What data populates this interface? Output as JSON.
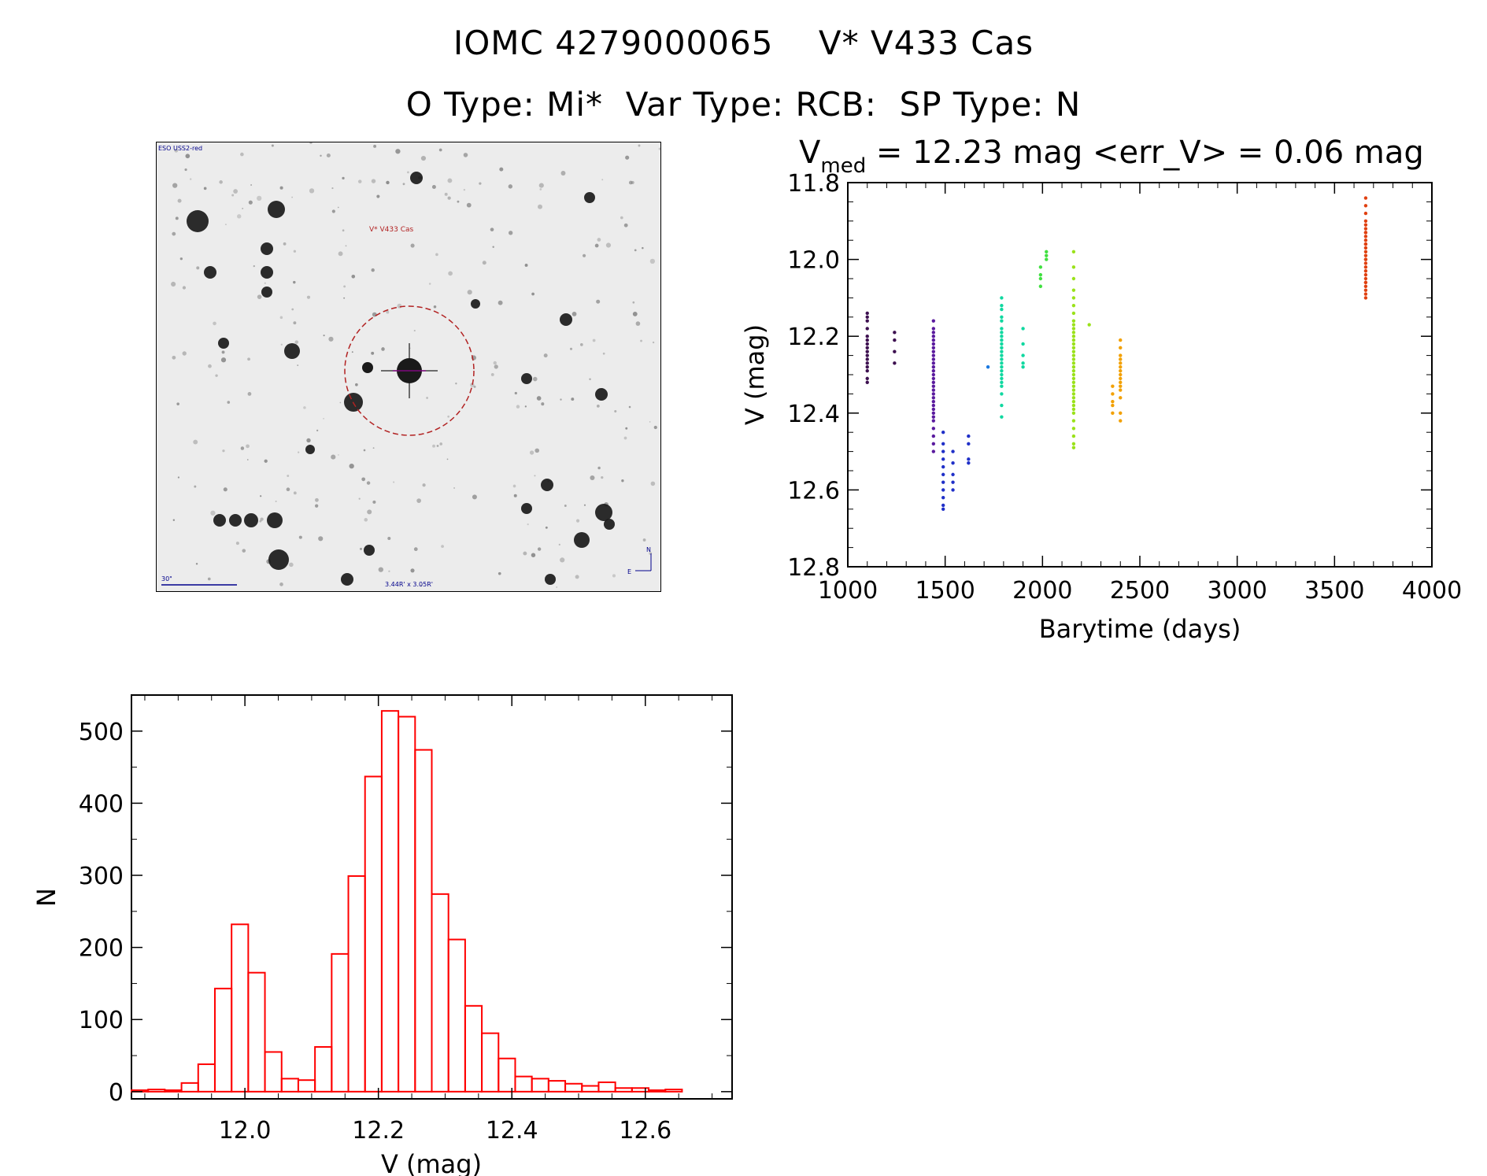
{
  "header": {
    "title_line1": "IOMC 4279000065    V* V433 Cas",
    "title_line2": "O Type: Mi*  Var Type: RCB:  SP Type: N"
  },
  "finder": {
    "survey_label": "ESO USS2-red",
    "target_label": "V* V433 Cas",
    "scale_label": "30\"",
    "fov_label": "3.44R' x 3.05R'",
    "north_label": "N",
    "east_label": "E",
    "colors": {
      "ink": "#1a1a1a",
      "circle": "#b22222",
      "label": "#00008b",
      "target_label": "#b22222"
    }
  },
  "light_curve": {
    "title_prefix": "V",
    "title_sub": "med",
    "title_rest": " = 12.23 mag <err_V> = 0.06 mag",
    "chart_data": {
      "type": "scatter",
      "xlabel": "Barytime (days)",
      "ylabel": "V (mag)",
      "xlim": [
        1000,
        4000
      ],
      "ylim": [
        12.8,
        11.8
      ],
      "y_inverted": true,
      "x_ticks": [
        "1000",
        "1500",
        "2000",
        "2500",
        "3000",
        "3500",
        "4000"
      ],
      "y_ticks": [
        "11.8",
        "12.0",
        "12.2",
        "12.4",
        "12.6",
        "12.8"
      ],
      "series": [
        {
          "color": "#3d1050",
          "x": [
            1100,
            1100,
            1100,
            1100,
            1100,
            1100,
            1100,
            1100,
            1100,
            1100,
            1100,
            1100,
            1100,
            1100,
            1100,
            1100,
            1240,
            1240,
            1240,
            1240
          ],
          "y": [
            12.14,
            12.15,
            12.16,
            12.18,
            12.2,
            12.21,
            12.22,
            12.23,
            12.24,
            12.25,
            12.26,
            12.27,
            12.28,
            12.29,
            12.31,
            12.32,
            12.19,
            12.21,
            12.24,
            12.27
          ]
        },
        {
          "color": "#5a1a9e",
          "x": [
            1440,
            1440,
            1440,
            1440,
            1440,
            1440,
            1440,
            1440,
            1440,
            1440,
            1440,
            1440,
            1440,
            1440,
            1440,
            1440,
            1440,
            1440,
            1440,
            1440,
            1440,
            1440,
            1440,
            1440,
            1440,
            1440,
            1440,
            1440,
            1440,
            1440
          ],
          "y": [
            12.16,
            12.18,
            12.19,
            12.2,
            12.21,
            12.22,
            12.23,
            12.24,
            12.25,
            12.26,
            12.27,
            12.28,
            12.29,
            12.3,
            12.31,
            12.32,
            12.33,
            12.34,
            12.35,
            12.36,
            12.37,
            12.38,
            12.39,
            12.4,
            12.41,
            12.42,
            12.44,
            12.46,
            12.48,
            12.5
          ]
        },
        {
          "color": "#2030c8",
          "x": [
            1490,
            1490,
            1490,
            1490,
            1490,
            1490,
            1490,
            1490,
            1490,
            1490,
            1490,
            1540,
            1540,
            1540,
            1540,
            1540,
            1620,
            1620,
            1620,
            1620
          ],
          "y": [
            12.45,
            12.48,
            12.5,
            12.52,
            12.54,
            12.56,
            12.58,
            12.6,
            12.62,
            12.64,
            12.65,
            12.5,
            12.53,
            12.56,
            12.58,
            12.6,
            12.46,
            12.48,
            12.52,
            12.53
          ]
        },
        {
          "color": "#1a78e0",
          "x": [
            1720
          ],
          "y": [
            12.28
          ]
        },
        {
          "color": "#10d8a0",
          "x": [
            1790,
            1790,
            1790,
            1790,
            1790,
            1790,
            1790,
            1790,
            1790,
            1790,
            1790,
            1790,
            1790,
            1790,
            1790,
            1790,
            1790,
            1790,
            1790,
            1790,
            1790,
            1790,
            1790,
            1790,
            1900,
            1900,
            1900,
            1900,
            1900
          ],
          "y": [
            12.1,
            12.12,
            12.13,
            12.15,
            12.16,
            12.18,
            12.19,
            12.2,
            12.21,
            12.22,
            12.23,
            12.24,
            12.25,
            12.26,
            12.27,
            12.28,
            12.29,
            12.3,
            12.31,
            12.32,
            12.33,
            12.35,
            12.38,
            12.41,
            12.18,
            12.22,
            12.25,
            12.27,
            12.28
          ]
        },
        {
          "color": "#40e040",
          "x": [
            1990,
            1990,
            1990,
            1990,
            2020,
            2020,
            2020
          ],
          "y": [
            12.02,
            12.04,
            12.05,
            12.07,
            11.98,
            11.99,
            12.0
          ]
        },
        {
          "color": "#9ae21a",
          "x": [
            2160,
            2160,
            2160,
            2160,
            2160,
            2160,
            2160,
            2160,
            2160,
            2160,
            2160,
            2160,
            2160,
            2160,
            2160,
            2160,
            2160,
            2160,
            2160,
            2160,
            2160,
            2160,
            2160,
            2160,
            2160,
            2160,
            2160,
            2160,
            2160,
            2160,
            2160,
            2160,
            2160,
            2160,
            2160,
            2160,
            2160,
            2240
          ],
          "y": [
            11.98,
            12.02,
            12.05,
            12.08,
            12.1,
            12.12,
            12.14,
            12.16,
            12.17,
            12.18,
            12.19,
            12.2,
            12.21,
            12.22,
            12.23,
            12.24,
            12.25,
            12.26,
            12.27,
            12.28,
            12.29,
            12.3,
            12.31,
            12.32,
            12.33,
            12.34,
            12.35,
            12.36,
            12.37,
            12.38,
            12.39,
            12.4,
            12.42,
            12.44,
            12.46,
            12.48,
            12.49,
            12.17
          ]
        },
        {
          "color": "#f2a000",
          "x": [
            2360,
            2360,
            2360,
            2360,
            2360,
            2400,
            2400,
            2400,
            2400,
            2400,
            2400,
            2400,
            2400,
            2400,
            2400,
            2400,
            2400,
            2400,
            2400,
            2400
          ],
          "y": [
            12.33,
            12.35,
            12.37,
            12.38,
            12.4,
            12.21,
            12.23,
            12.25,
            12.26,
            12.27,
            12.28,
            12.29,
            12.3,
            12.31,
            12.32,
            12.33,
            12.34,
            12.36,
            12.4,
            12.42
          ]
        },
        {
          "color": "#e04010",
          "x": [
            3660,
            3660,
            3660,
            3660,
            3660,
            3660,
            3660,
            3660,
            3660,
            3660,
            3660,
            3660,
            3660,
            3660,
            3660,
            3660,
            3660,
            3660,
            3660,
            3660,
            3660,
            3660,
            3660,
            3660,
            3660,
            3660,
            3660,
            3660
          ],
          "y": [
            11.84,
            11.86,
            11.88,
            11.9,
            11.91,
            11.92,
            11.93,
            11.94,
            11.95,
            11.96,
            11.97,
            11.98,
            11.99,
            12.0,
            12.01,
            12.02,
            12.03,
            12.04,
            12.05,
            12.06,
            12.07,
            12.08,
            12.09,
            12.1,
            12.06,
            11.96,
            11.93,
            12.0
          ]
        }
      ]
    }
  },
  "histogram": {
    "chart_data": {
      "type": "bar",
      "xlabel": "V (mag)",
      "ylabel": "N",
      "xlim": [
        11.83,
        12.73
      ],
      "ylim": [
        -10,
        550
      ],
      "x_ticks": [
        "12.0",
        "12.2",
        "12.4",
        "12.6"
      ],
      "y_ticks": [
        "0",
        "100",
        "200",
        "300",
        "400",
        "500"
      ],
      "bin_width": 0.025,
      "bin_starts": [
        11.83,
        11.855,
        11.88,
        11.905,
        11.93,
        11.955,
        11.98,
        12.005,
        12.03,
        12.055,
        12.08,
        12.105,
        12.13,
        12.155,
        12.18,
        12.205,
        12.23,
        12.255,
        12.28,
        12.305,
        12.33,
        12.355,
        12.38,
        12.405,
        12.43,
        12.455,
        12.48,
        12.505,
        12.53,
        12.555,
        12.58,
        12.605,
        12.63,
        12.655
      ],
      "values": [
        2,
        3,
        2,
        12,
        38,
        143,
        232,
        165,
        55,
        18,
        16,
        62,
        191,
        299,
        437,
        528,
        520,
        474,
        274,
        211,
        119,
        81,
        46,
        21,
        18,
        15,
        11,
        8,
        13,
        5,
        5,
        2,
        3,
        0
      ],
      "color": "#ff0000"
    }
  }
}
